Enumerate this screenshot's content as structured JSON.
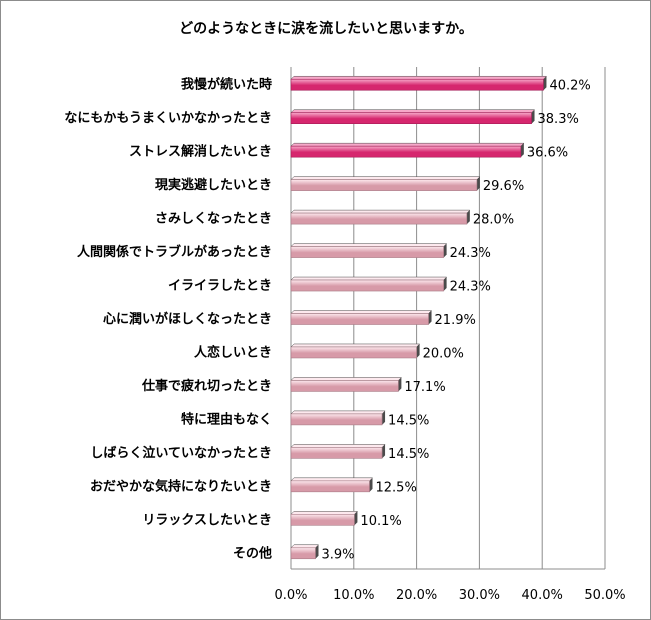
{
  "chart_data": {
    "type": "bar",
    "orientation": "horizontal",
    "title": "どのようなときに涙を流したいと思いますか。",
    "xlabel": "",
    "ylabel": "",
    "xlim": [
      0,
      50
    ],
    "ticks": [
      "0.0%",
      "10.0%",
      "20.0%",
      "30.0%",
      "40.0%",
      "50.0%"
    ],
    "tick_values": [
      0,
      10,
      20,
      30,
      40,
      50
    ],
    "grid": true,
    "legend": "none",
    "categories": [
      "我慢が続いた時",
      "なにもかもうまくいかなかったとき",
      "ストレス解消したいとき",
      "現実逃避したいとき",
      "さみしくなったとき",
      "人間関係でトラブルがあったとき",
      "イライラしたとき",
      "心に潤いがほしくなったとき",
      "人恋しいとき",
      "仕事で疲れ切ったとき",
      "特に理由もなく",
      "しばらく泣いていなかったとき",
      "おだやかな気持になりたいとき",
      "リラックスしたいとき",
      "その他"
    ],
    "values": [
      40.2,
      38.3,
      36.6,
      29.6,
      28.0,
      24.3,
      24.3,
      21.9,
      20.0,
      17.1,
      14.5,
      14.5,
      12.5,
      10.1,
      3.9
    ],
    "value_labels": [
      "40.2%",
      "38.3%",
      "36.6%",
      "29.6%",
      "28.0%",
      "24.3%",
      "24.3%",
      "21.9%",
      "20.0%",
      "17.1%",
      "14.5%",
      "14.5%",
      "12.5%",
      "10.1%",
      "3.9%"
    ],
    "highlight_count": 3,
    "colors": {
      "highlight_light": "#f7a8c9",
      "highlight_dark": "#d6276e",
      "normal_light": "#fde9ee",
      "normal_dark": "#d79aa8",
      "shadow": "#4a4a4a",
      "grid": "#8c8c8c"
    }
  }
}
